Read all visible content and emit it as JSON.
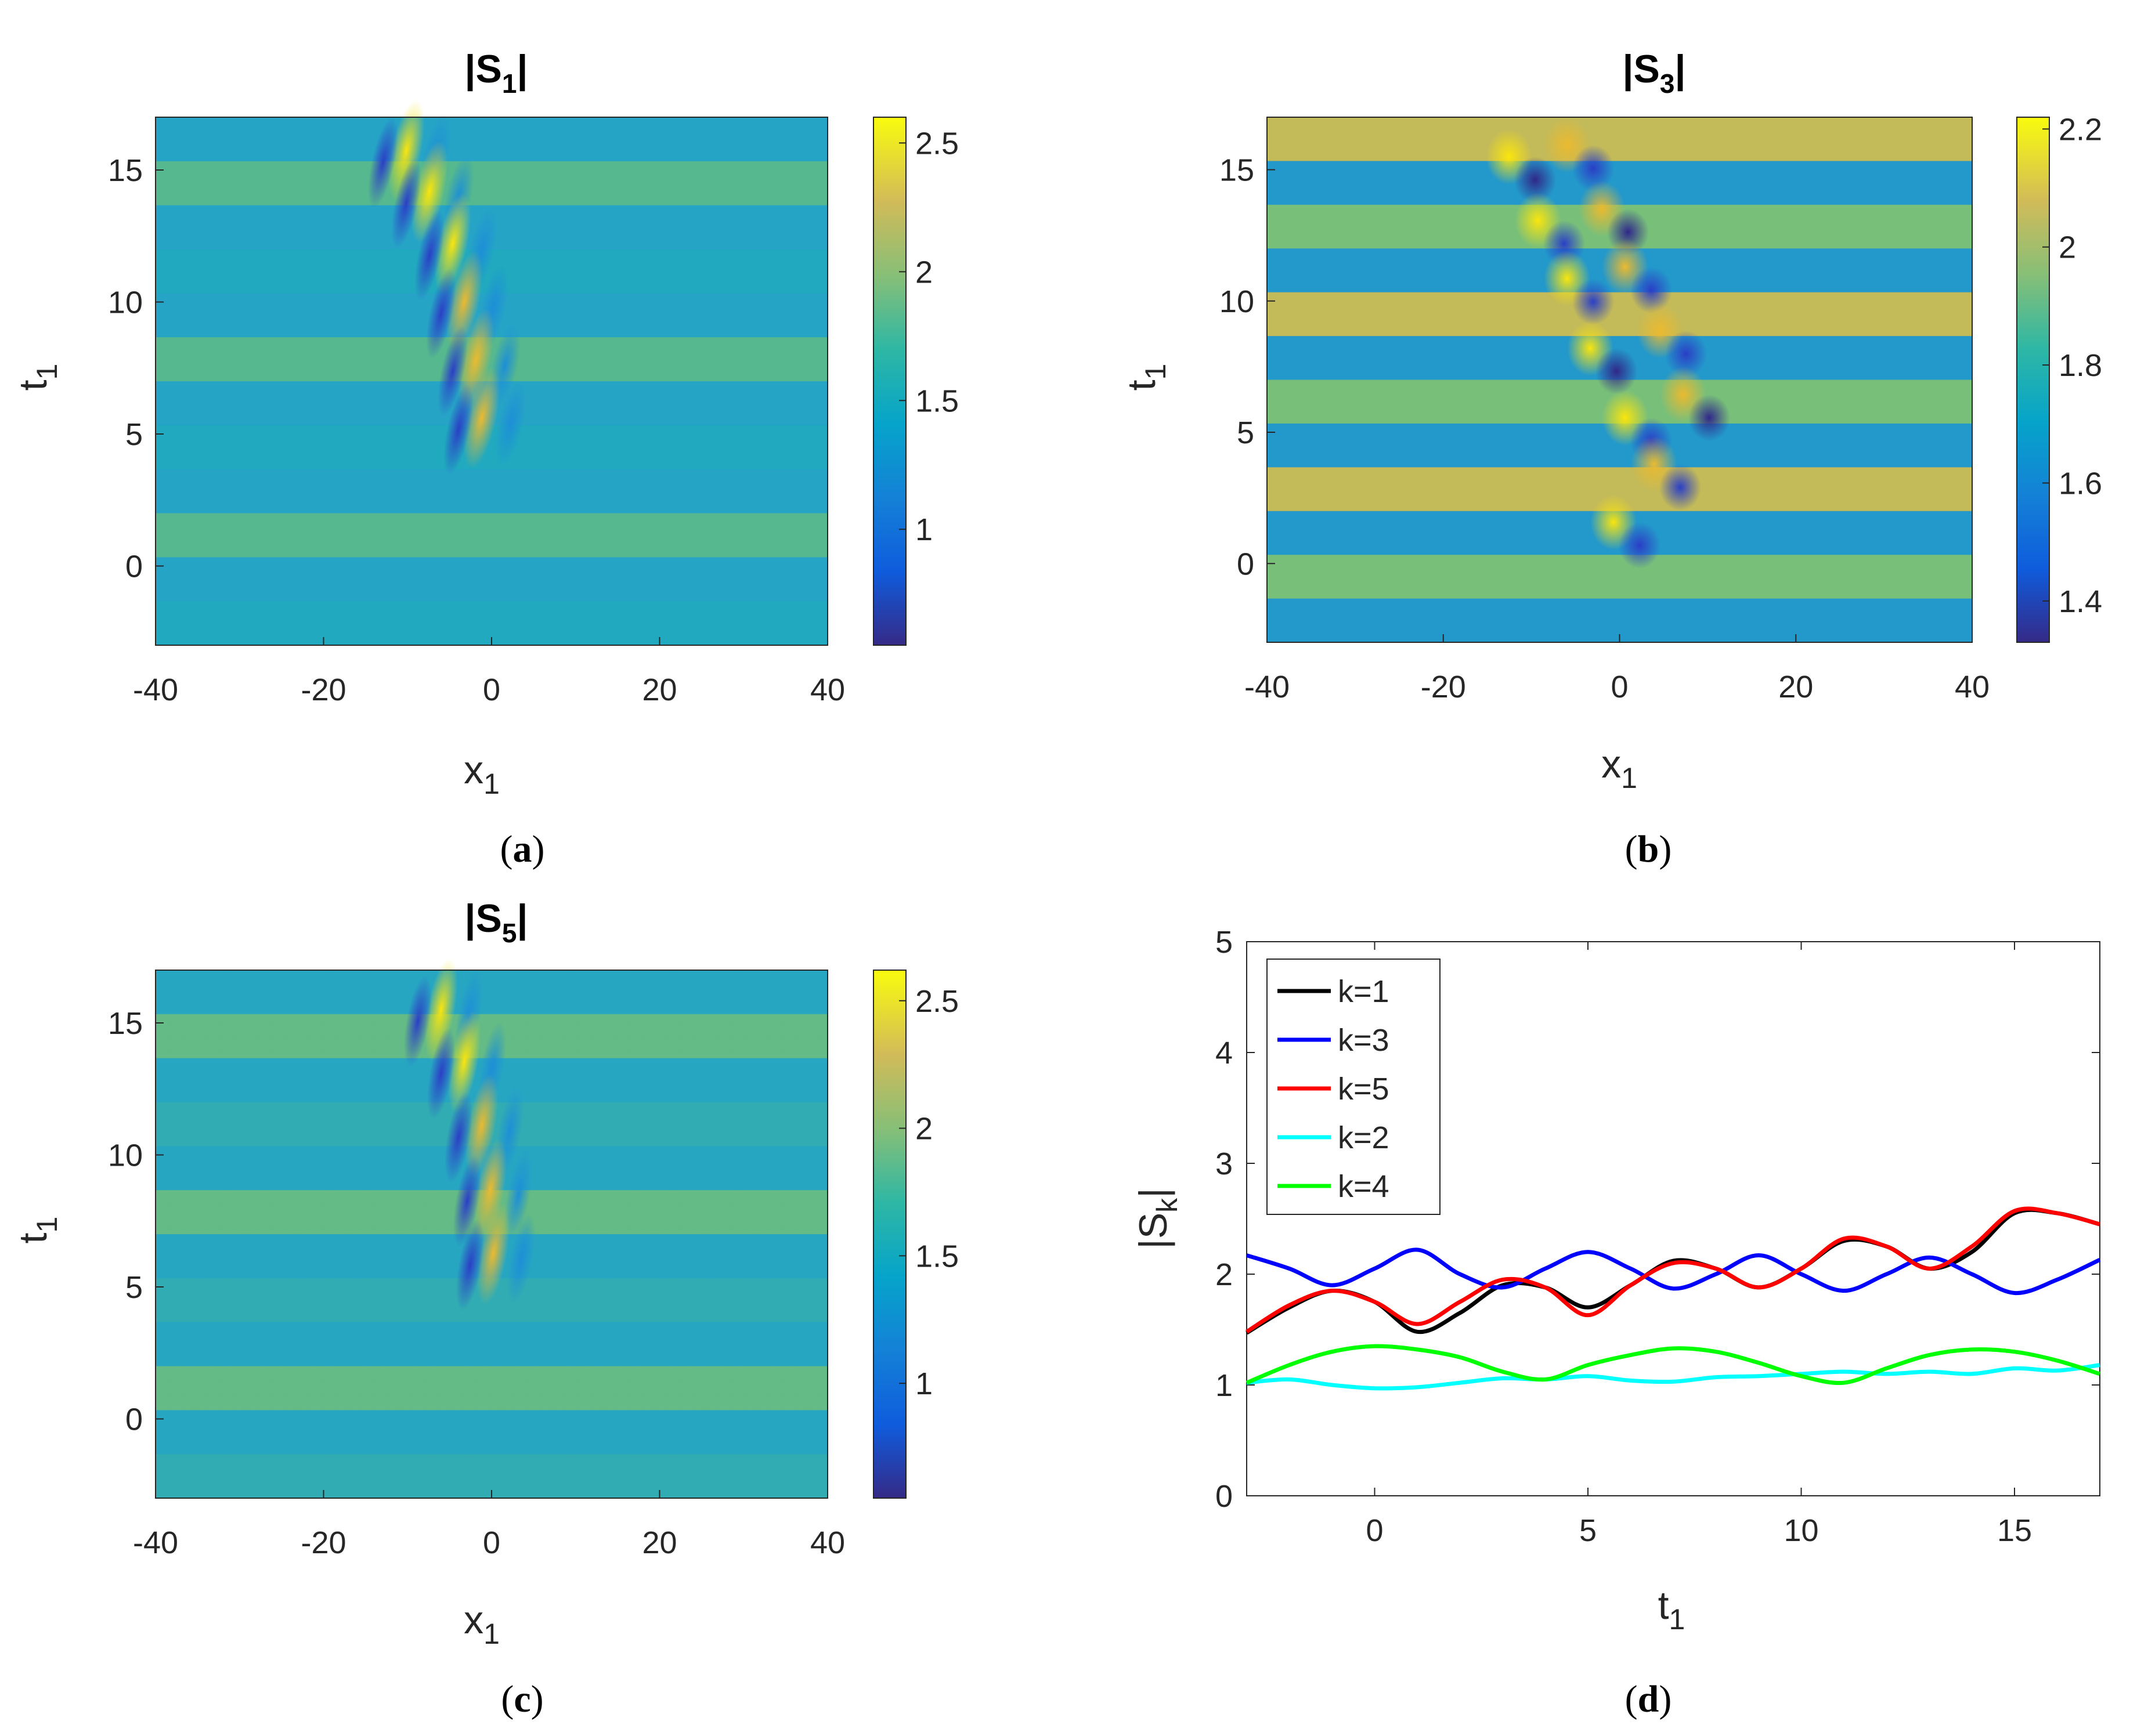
{
  "figure": {
    "panels": {
      "a": {
        "caption": "a",
        "title_main": "|S",
        "title_sub": "1",
        "title_end": "|",
        "xlabel": "x",
        "xlabel_sub": "1",
        "ylabel": "t",
        "ylabel_sub": "1"
      },
      "b": {
        "caption": "b",
        "title_main": "|S",
        "title_sub": "3",
        "title_end": "|",
        "xlabel": "x",
        "xlabel_sub": "1",
        "ylabel": "t",
        "ylabel_sub": "1"
      },
      "c": {
        "caption": "c",
        "title_main": "|S",
        "title_sub": "5",
        "title_end": "|",
        "xlabel": "x",
        "xlabel_sub": "1",
        "ylabel": "t",
        "ylabel_sub": "1"
      },
      "d": {
        "caption": "d",
        "xlabel": "t",
        "xlabel_sub": "1",
        "ylabel": "|S",
        "ylabel_sub": "k",
        "ylabel_end": "|"
      }
    },
    "colors": {
      "k1": "#000000",
      "k3": "#0000ff",
      "k5": "#ff0000",
      "k2": "#00ffff",
      "k4": "#00ff00"
    }
  },
  "chart_data": [
    {
      "id": "a",
      "type": "heatmap",
      "title": "|S1|",
      "xlabel": "x1",
      "ylabel": "t1",
      "xlim": [
        -40,
        40
      ],
      "ylim": [
        -3,
        17
      ],
      "xticks": [
        "-40",
        "-20",
        "0",
        "20",
        "40"
      ],
      "yticks": [
        "0",
        "5",
        "10",
        "15"
      ],
      "colorbar": {
        "range": [
          0.55,
          2.6
        ],
        "ticks": [
          "1",
          "1.5",
          "2",
          "2.5"
        ]
      }
    },
    {
      "id": "b",
      "type": "heatmap",
      "title": "|S3|",
      "xlabel": "x1",
      "ylabel": "t1",
      "xlim": [
        -40,
        40
      ],
      "ylim": [
        -3,
        17
      ],
      "xticks": [
        "-40",
        "-20",
        "0",
        "20",
        "40"
      ],
      "yticks": [
        "0",
        "5",
        "10",
        "15"
      ],
      "colorbar": {
        "range": [
          1.33,
          2.22
        ],
        "ticks": [
          "1.4",
          "1.6",
          "1.8",
          "2",
          "2.2"
        ]
      }
    },
    {
      "id": "c",
      "type": "heatmap",
      "title": "|S5|",
      "xlabel": "x1",
      "ylabel": "t1",
      "xlim": [
        -40,
        40
      ],
      "ylim": [
        -3,
        17
      ],
      "xticks": [
        "-40",
        "-20",
        "0",
        "20",
        "40"
      ],
      "yticks": [
        "0",
        "5",
        "10",
        "15"
      ],
      "colorbar": {
        "range": [
          0.55,
          2.62
        ],
        "ticks": [
          "1",
          "1.5",
          "2",
          "2.5"
        ]
      }
    },
    {
      "id": "d",
      "type": "line",
      "xlabel": "t1",
      "ylabel": "|Sk|",
      "xlim": [
        -3,
        17
      ],
      "ylim": [
        0,
        5
      ],
      "xticks": [
        "0",
        "5",
        "10",
        "15"
      ],
      "yticks": [
        "0",
        "1",
        "2",
        "3",
        "4",
        "5"
      ],
      "legend_position": "top-left",
      "series": [
        {
          "name": "k=1",
          "color": "#000000",
          "x": [
            -3,
            -2,
            -1,
            0,
            1,
            2,
            3,
            4,
            5,
            6,
            7,
            8,
            9,
            10,
            11,
            12,
            13,
            14,
            15,
            16,
            17
          ],
          "y": [
            1.47,
            1.7,
            1.85,
            1.75,
            1.48,
            1.65,
            1.9,
            1.88,
            1.7,
            1.9,
            2.12,
            2.05,
            1.88,
            2.05,
            2.3,
            2.25,
            2.05,
            2.2,
            2.55,
            2.55,
            2.45
          ]
        },
        {
          "name": "k=3",
          "color": "#0000ff",
          "x": [
            -3,
            -2,
            -1,
            0,
            1,
            2,
            3,
            4,
            5,
            6,
            7,
            8,
            9,
            10,
            11,
            12,
            13,
            14,
            15,
            16,
            17
          ],
          "y": [
            2.17,
            2.05,
            1.9,
            2.05,
            2.22,
            2.0,
            1.88,
            2.05,
            2.2,
            2.05,
            1.87,
            2.0,
            2.17,
            2.0,
            1.85,
            2.0,
            2.15,
            2.0,
            1.83,
            1.95,
            2.13
          ]
        },
        {
          "name": "k=5",
          "color": "#ff0000",
          "x": [
            -3,
            -2,
            -1,
            0,
            1,
            2,
            3,
            4,
            5,
            6,
            7,
            8,
            9,
            10,
            11,
            12,
            13,
            14,
            15,
            16,
            17
          ],
          "y": [
            1.48,
            1.72,
            1.85,
            1.75,
            1.55,
            1.75,
            1.95,
            1.88,
            1.63,
            1.9,
            2.1,
            2.05,
            1.88,
            2.05,
            2.32,
            2.25,
            2.05,
            2.25,
            2.57,
            2.55,
            2.45
          ]
        },
        {
          "name": "k=2",
          "color": "#00ffff",
          "x": [
            -3,
            -2,
            -1,
            0,
            1,
            2,
            3,
            4,
            5,
            6,
            7,
            8,
            9,
            10,
            11,
            12,
            13,
            14,
            15,
            16,
            17
          ],
          "y": [
            1.02,
            1.05,
            1.0,
            0.97,
            0.98,
            1.02,
            1.06,
            1.05,
            1.08,
            1.04,
            1.03,
            1.07,
            1.08,
            1.1,
            1.12,
            1.1,
            1.12,
            1.1,
            1.15,
            1.13,
            1.18
          ]
        },
        {
          "name": "k=4",
          "color": "#00ff00",
          "x": [
            -3,
            -2,
            -1,
            0,
            1,
            2,
            3,
            4,
            5,
            6,
            7,
            8,
            9,
            10,
            11,
            12,
            13,
            14,
            15,
            16,
            17
          ],
          "y": [
            1.02,
            1.18,
            1.3,
            1.35,
            1.32,
            1.25,
            1.12,
            1.05,
            1.18,
            1.27,
            1.33,
            1.3,
            1.2,
            1.08,
            1.02,
            1.15,
            1.27,
            1.32,
            1.3,
            1.22,
            1.1
          ]
        }
      ]
    }
  ]
}
